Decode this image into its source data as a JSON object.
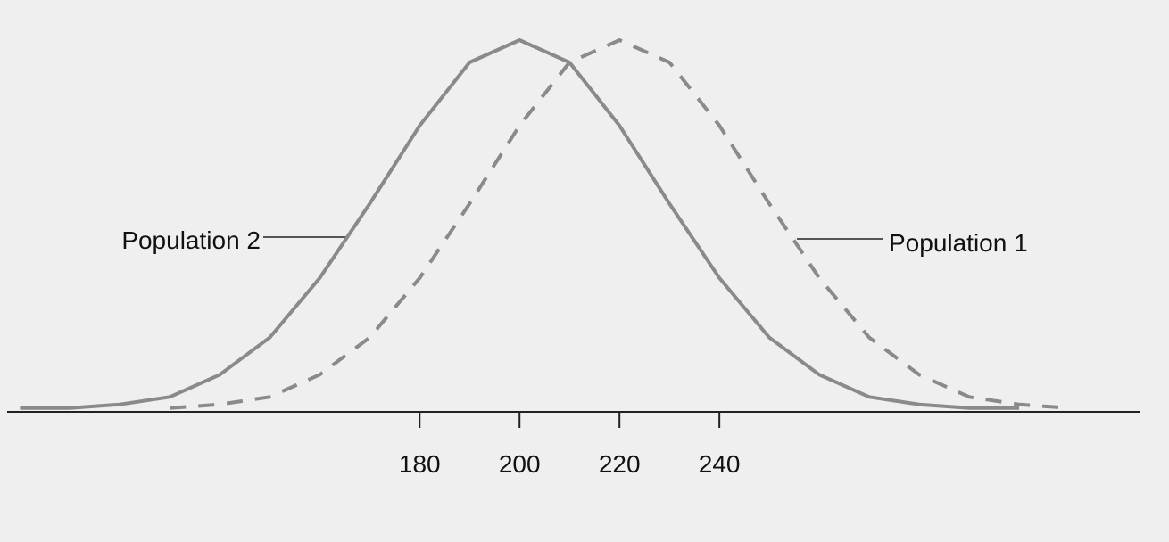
{
  "chart_data": {
    "type": "line",
    "x": [
      100,
      110,
      120,
      130,
      140,
      150,
      160,
      170,
      180,
      190,
      200,
      210,
      220,
      230,
      240,
      250,
      260,
      270,
      280,
      290,
      300,
      310,
      320
    ],
    "series": [
      {
        "name": "Population 2",
        "color": "#8a8a8a",
        "dash": false,
        "values": [
          0.01,
          0.01,
          0.02,
          0.04,
          0.1,
          0.2,
          0.36,
          0.56,
          0.77,
          0.94,
          1.0,
          0.94,
          0.77,
          0.56,
          0.36,
          0.2,
          0.1,
          0.04,
          0.02,
          0.01,
          0.01,
          null,
          null
        ]
      },
      {
        "name": "Population 1",
        "color": "#8a8a8a",
        "dash": true,
        "values": [
          null,
          null,
          null,
          0.01,
          0.02,
          0.04,
          0.1,
          0.2,
          0.36,
          0.56,
          0.77,
          0.94,
          1.0,
          0.94,
          0.77,
          0.56,
          0.36,
          0.2,
          0.1,
          0.04,
          0.02,
          0.01,
          null
        ]
      }
    ],
    "xlim": [
      96,
      330
    ],
    "ylim": [
      0,
      1
    ],
    "xticks": [
      180,
      200,
      220,
      240
    ]
  }
}
